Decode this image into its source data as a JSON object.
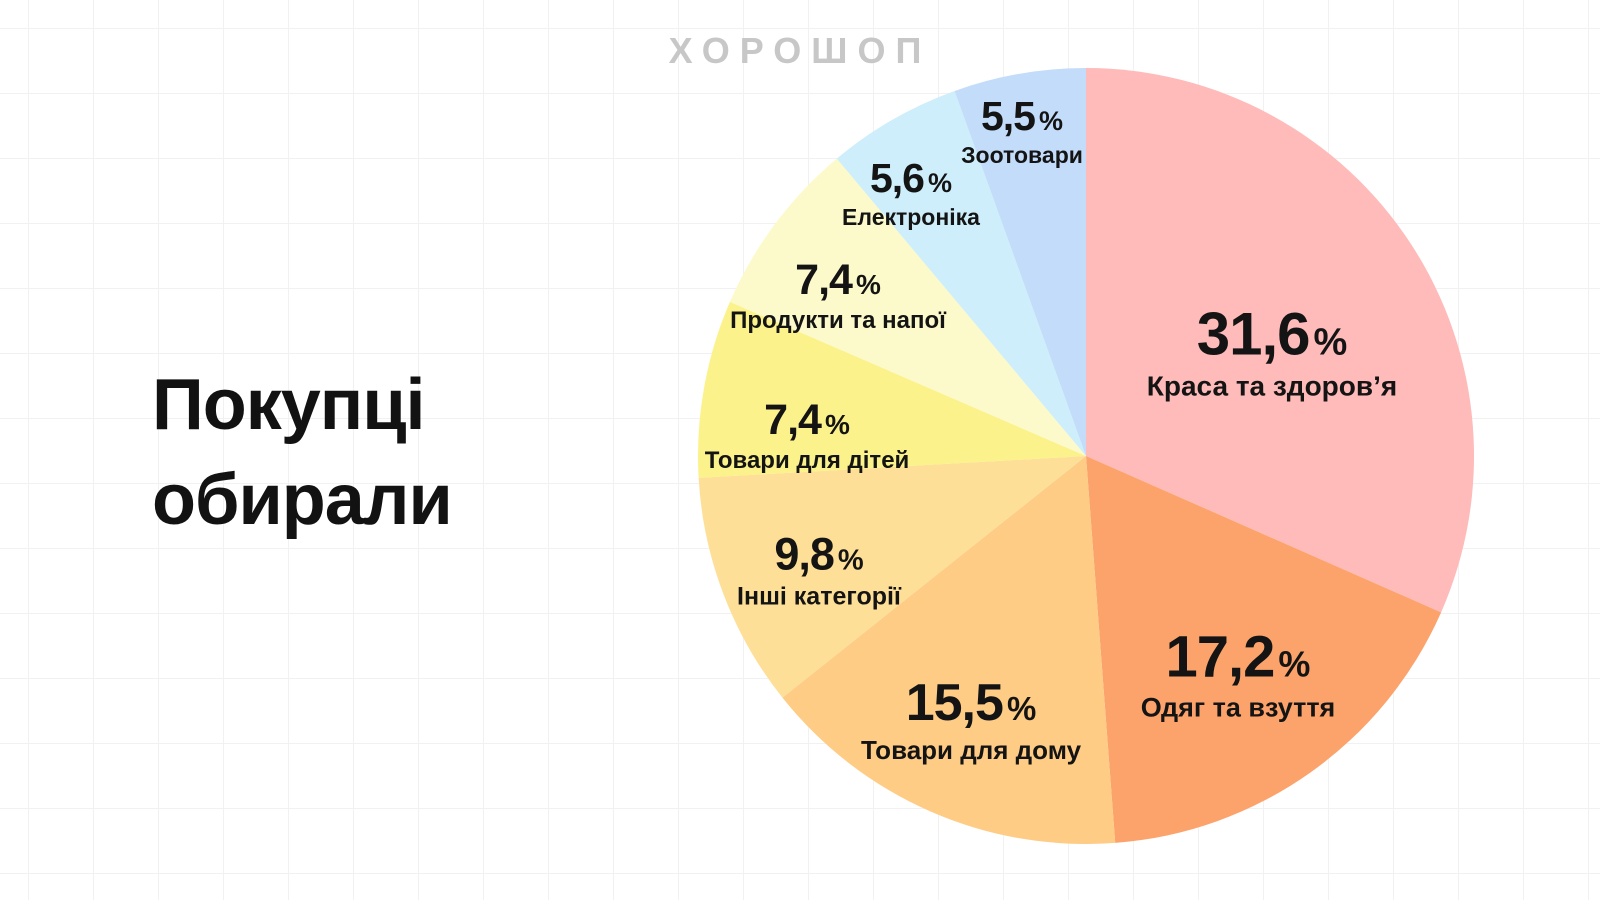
{
  "header": {
    "brand": "ХОРОШОП"
  },
  "title": {
    "lines": [
      "Покупці",
      "обирали"
    ]
  },
  "percent_sign": "%",
  "colors": {
    "background": "#ffffff",
    "grid_line": "#f1f1f1",
    "brand_text": "#c7c7c7",
    "text": "#141414"
  },
  "chart_data": {
    "type": "pie",
    "title": "Покупці обирали",
    "source_brand": "ХОРОШОП",
    "start_angle_deg": -90,
    "direction": "clockwise",
    "legend_position": "labels-on-slices",
    "slices": [
      {
        "label": "Краса та здоров’я",
        "value": 31.6,
        "value_label": "31,6",
        "color": "#FFBABA"
      },
      {
        "label": "Одяг та взуття",
        "value": 17.2,
        "value_label": "17,2",
        "color": "#FCA36C"
      },
      {
        "label": "Товари для дому",
        "value": 15.5,
        "value_label": "15,5",
        "color": "#FECC85"
      },
      {
        "label": "Інші категорії",
        "value": 9.8,
        "value_label": "9,8",
        "color": "#FEDF97"
      },
      {
        "label": "Товари для дітей",
        "value": 7.4,
        "value_label": "7,4",
        "color": "#FCF28B"
      },
      {
        "label": "Продукти та напої",
        "value": 7.4,
        "value_label": "7,4",
        "color": "#FCFACA"
      },
      {
        "label": "Електроніка",
        "value": 5.6,
        "value_label": "5,6",
        "color": "#CDEEFA"
      },
      {
        "label": "Зоотовари",
        "value": 5.5,
        "value_label": "5,5",
        "color": "#C3DCFA"
      }
    ]
  }
}
